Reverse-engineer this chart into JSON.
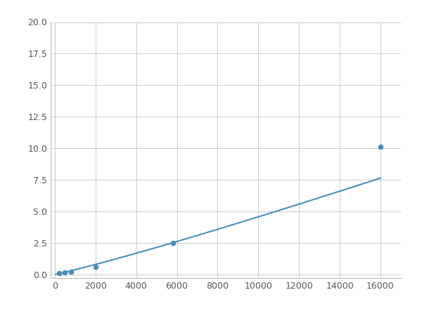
{
  "x": [
    200,
    500,
    800,
    2000,
    5800,
    16000
  ],
  "y": [
    0.1,
    0.15,
    0.2,
    0.6,
    2.5,
    10.1
  ],
  "line_color": "#4a90b8",
  "marker_color": "#4a90b8",
  "xlim": [
    -200,
    17000
  ],
  "ylim": [
    -0.3,
    20.0
  ],
  "xticks": [
    0,
    2000,
    4000,
    6000,
    8000,
    10000,
    12000,
    14000,
    16000
  ],
  "yticks": [
    0.0,
    2.5,
    5.0,
    7.5,
    10.0,
    12.5,
    15.0,
    17.5,
    20.0
  ],
  "grid": true,
  "background_color": "#ffffff",
  "figure_width": 6.0,
  "figure_height": 4.5,
  "dpi": 100
}
